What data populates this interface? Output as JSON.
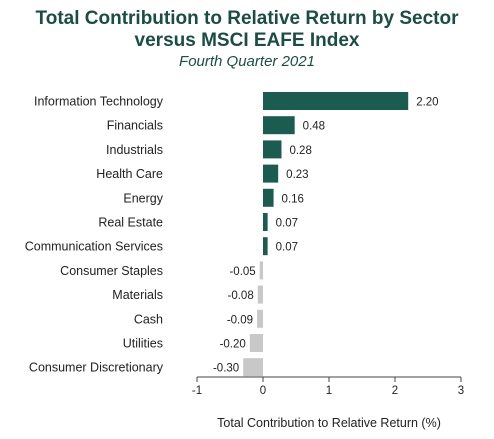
{
  "chart_data": {
    "type": "bar",
    "orientation": "horizontal",
    "title": "Total Contribution to Relative Return by Sector versus MSCI EAFE Index",
    "title_lines": [
      "Total Contribution to Relative Return by Sector",
      "versus MSCI EAFE Index"
    ],
    "subtitle": "Fourth Quarter 2021",
    "xlabel": "Total Contribution to Relative Return (%)",
    "categories": [
      "Information Technology",
      "Financials",
      "Industrials",
      "Health Care",
      "Energy",
      "Real Estate",
      "Communication Services",
      "Consumer Staples",
      "Materials",
      "Cash",
      "Utilities",
      "Consumer Discretionary"
    ],
    "values": [
      2.2,
      0.48,
      0.28,
      0.23,
      0.16,
      0.07,
      0.07,
      -0.05,
      -0.08,
      -0.09,
      -0.2,
      -0.3
    ],
    "value_labels": [
      "2.20",
      "0.48",
      "0.28",
      "0.23",
      "0.16",
      "0.07",
      "0.07",
      "-0.05",
      "-0.08",
      "-0.09",
      "-0.20",
      "-0.30"
    ],
    "xlim": [
      -1,
      3
    ],
    "xticks": [
      -1,
      0,
      1,
      2,
      3
    ],
    "xtick_labels": [
      "-1",
      "0",
      "1",
      "2",
      "3"
    ],
    "grid": false,
    "colors": {
      "positive": "#1a5c4f",
      "negative": "#c8c8c8",
      "title": "#1a4e43"
    }
  }
}
